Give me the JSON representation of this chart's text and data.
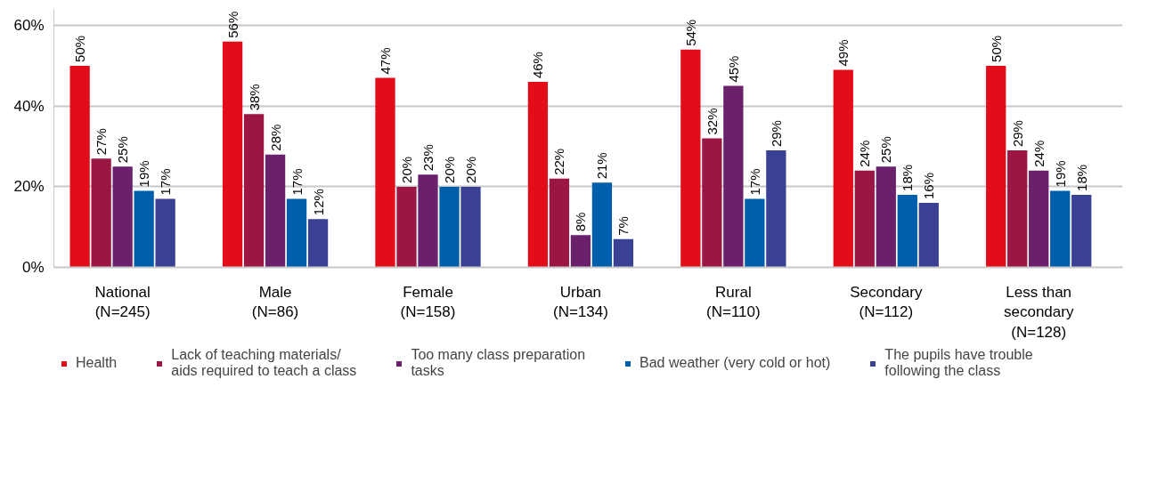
{
  "chart_data": {
    "type": "bar",
    "categories": [
      "National\n(N=245)",
      "Male\n(N=86)",
      "Female\n(N=158)",
      "Urban\n(N=134)",
      "Rural\n(N=110)",
      "Secondary\n(N=112)",
      "Less than\nsecondary\n(N=128)"
    ],
    "series": [
      {
        "name": "Health",
        "color": "#e20d18",
        "values": [
          50,
          56,
          47,
          46,
          54,
          49,
          50
        ],
        "value_labels": [
          "50%",
          "56%",
          "47%",
          "46%",
          "54%",
          "49%",
          "50%"
        ]
      },
      {
        "name": "Lack of teaching materials/ aids required to teach a class",
        "color": "#9b1642",
        "values": [
          27,
          38,
          20,
          22,
          32,
          24,
          29
        ],
        "value_labels": [
          "27%",
          "38%",
          "20%",
          "22%",
          "32%",
          "24%",
          "29%"
        ]
      },
      {
        "name": "Too many class preparation tasks",
        "color": "#6a206b",
        "values": [
          25,
          28,
          23,
          8,
          45,
          25,
          24
        ],
        "value_labels": [
          "25%",
          "28%",
          "23%",
          "8%",
          "45%",
          "25%",
          "24%"
        ]
      },
      {
        "name": "Bad weather (very cold or hot)",
        "color": "#005fad",
        "values": [
          19,
          17,
          20,
          21,
          17,
          18,
          19
        ],
        "value_labels": [
          "19%",
          "17%",
          "20%",
          "21%",
          "17%",
          "18%",
          "19%"
        ]
      },
      {
        "name": "The pupils have trouble following the class",
        "color": "#3a4194",
        "values": [
          17,
          12,
          20,
          7,
          29,
          16,
          18
        ],
        "value_labels": [
          "17%",
          "12%",
          "20%",
          "7%",
          "29%",
          "16%",
          "18%"
        ]
      }
    ],
    "ylim": [
      0,
      64
    ],
    "yticks": [
      {
        "value": 0,
        "label": "0%"
      },
      {
        "value": 20,
        "label": "20%"
      },
      {
        "value": 40,
        "label": "40%"
      },
      {
        "value": 60,
        "label": "60%"
      }
    ],
    "grid": "y",
    "legend": "bottom"
  }
}
